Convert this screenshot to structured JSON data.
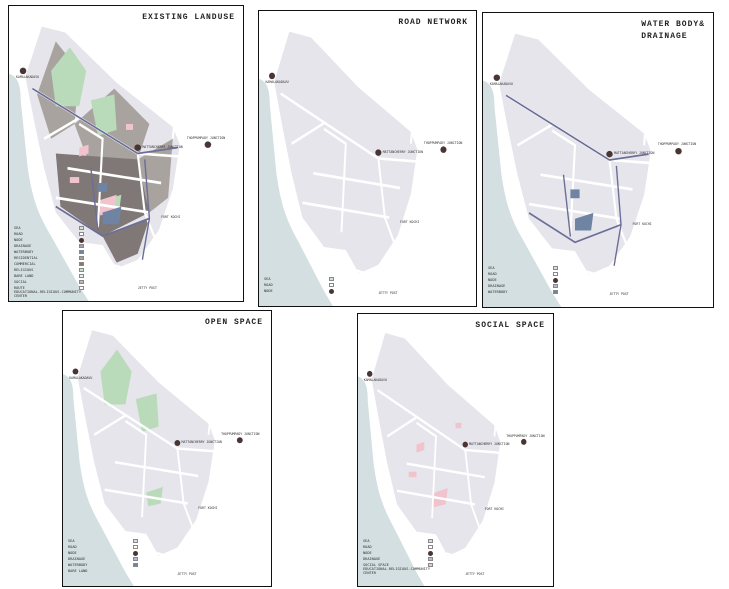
{
  "colors": {
    "sea": "#d3dfe0",
    "land": "#e6e5ec",
    "road": "#ffffff",
    "node": "#4a3535",
    "drainage": "#6b6e96",
    "waterbody": "#6f84a3",
    "residential": "#a9a3a0",
    "commercial": "#7f7876",
    "bare_land": "#b9dbb9",
    "social": "#f1c3cc"
  },
  "panels": [
    {
      "id": "landuse",
      "title": "EXISTING LANDUSE",
      "layers": [
        "landuse",
        "drainage",
        "waterbody",
        "bare",
        "social"
      ],
      "legend": [
        {
          "label": "SEA",
          "color": "#d3dfe0"
        },
        {
          "label": "ROAD",
          "color": "#ffffff"
        },
        {
          "label": "NODE",
          "color": "#4a3535",
          "dot": true
        },
        {
          "label": "DRAINAGE",
          "color": "#9ea0c0"
        },
        {
          "label": "WATERBODY",
          "color": "#6f84a3"
        },
        {
          "label": "RESIDENTIAL",
          "color": "#a9a3a0"
        },
        {
          "label": "COMMERCIAL",
          "color": "#7f7876"
        },
        {
          "label": "RELIGIOUS",
          "color": "#c9e2c9"
        },
        {
          "label": "BARE LAND",
          "color": "#e6f2e6"
        },
        {
          "label": "SOCIAL",
          "color": "#c8b0b6"
        },
        {
          "label": "ROUTE",
          "color": "#ffffff"
        },
        {
          "label": "EDUCATIONAL-RELIGIOUS-COMMUNITY CENTER",
          "color": null
        }
      ]
    },
    {
      "id": "road",
      "title": "ROAD NETWORK",
      "layers": [],
      "legend": [
        {
          "label": "SEA",
          "color": "#d3dfe0"
        },
        {
          "label": "ROAD",
          "color": "#ffffff"
        },
        {
          "label": "NODE",
          "color": "#4a3535",
          "dot": true
        }
      ]
    },
    {
      "id": "water",
      "title": "WATER BODY&\nDRAINAGE",
      "layers": [
        "drainage",
        "waterbody"
      ],
      "legend": [
        {
          "label": "SEA",
          "color": "#d3dfe0"
        },
        {
          "label": "ROAD",
          "color": "#ffffff"
        },
        {
          "label": "NODE",
          "color": "#4a3535",
          "dot": true
        },
        {
          "label": "DRAINAGE",
          "color": "#b9b8d2"
        },
        {
          "label": "WATERBODY",
          "color": "#6f84a3"
        }
      ]
    },
    {
      "id": "open",
      "title": "OPEN SPACE",
      "layers": [
        "bare"
      ],
      "legend": [
        {
          "label": "SEA",
          "color": "#d3dfe0"
        },
        {
          "label": "ROAD",
          "color": "#ffffff"
        },
        {
          "label": "NODE",
          "color": "#4a3535",
          "dot": true
        },
        {
          "label": "DRAINAGE",
          "color": "#b9b8d2"
        },
        {
          "label": "WATERBODY",
          "color": "#6f84a3"
        },
        {
          "label": "BARE LAND",
          "color": null
        }
      ]
    },
    {
      "id": "social",
      "title": "SOCIAL SPACE",
      "layers": [
        "social"
      ],
      "legend": [
        {
          "label": "SEA",
          "color": "#d3dfe0"
        },
        {
          "label": "ROAD",
          "color": "#ffffff"
        },
        {
          "label": "NODE",
          "color": "#4a3535",
          "dot": true
        },
        {
          "label": "DRAINAGE",
          "color": "#b9b8d2"
        },
        {
          "label": "SOCIAL SPACE",
          "color": "#f1c3cc"
        },
        {
          "label": "EDUCATIONAL-RELIGIOUS-COMMUNITY CENTER",
          "color": null
        }
      ]
    }
  ],
  "place_labels": {
    "node_west": "KAMALAKADAVU",
    "node_center": "MATTANCHERRY JUNCTION",
    "node_east": "THOPPUMPADY JUNCTION",
    "south_east": "FORT KOCHI",
    "bottom": "JETTY POST"
  }
}
